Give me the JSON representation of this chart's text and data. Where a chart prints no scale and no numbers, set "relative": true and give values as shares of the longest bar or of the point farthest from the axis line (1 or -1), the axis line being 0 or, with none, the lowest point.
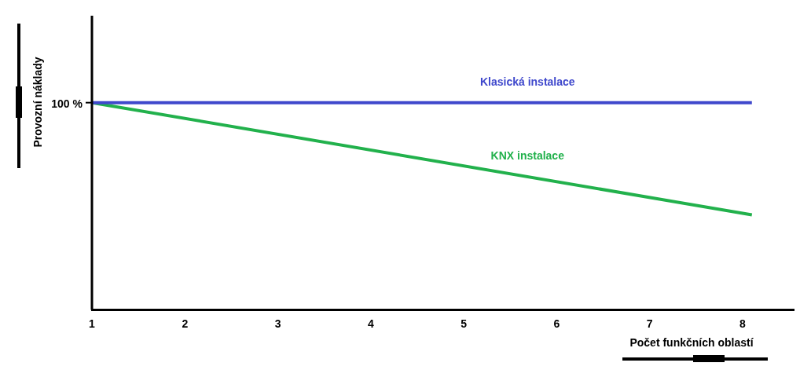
{
  "chart_data": {
    "type": "line",
    "relative": true,
    "xlabel": "Počet funkčních oblastí",
    "ylabel": "Provozní náklady",
    "xlim": [
      1,
      8.55
    ],
    "xticks": [
      1,
      2,
      3,
      4,
      5,
      6,
      7,
      8
    ],
    "grid": false,
    "legend": false,
    "marker": "none",
    "line_style": "solid",
    "annotations": [
      {
        "text": "100 %",
        "x": 1,
        "y": 1
      }
    ],
    "x": [
      1,
      8.1
    ],
    "series": [
      {
        "name": "Klasická instalace",
        "color": "#3f48cc",
        "values": [
          1,
          1
        ]
      },
      {
        "name": "KNX instalace",
        "color": "#22b14c",
        "values": [
          1,
          0.458
        ]
      }
    ]
  }
}
